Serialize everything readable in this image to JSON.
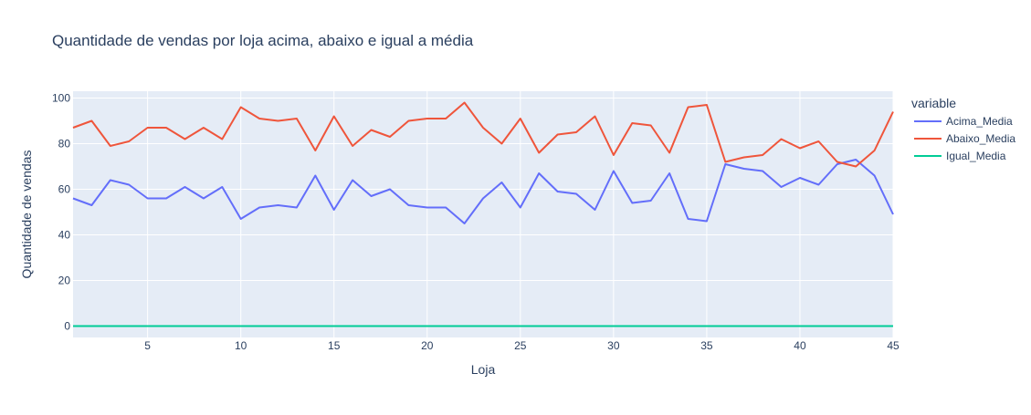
{
  "chart_data": {
    "type": "line",
    "title": "Quantidade de vendas por loja acima, abaixo e igual a média",
    "xlabel": "Loja",
    "ylabel": "Quantidade de vendas",
    "xlim": [
      1,
      45
    ],
    "ylim": [
      -5,
      103
    ],
    "x_ticks": [
      5,
      10,
      15,
      20,
      25,
      30,
      35,
      40,
      45
    ],
    "y_ticks": [
      0,
      20,
      40,
      60,
      80,
      100
    ],
    "grid": true,
    "plot_bgcolor": "#E5ECF6",
    "legend": {
      "title": "variable",
      "position": "top-right"
    },
    "x": [
      1,
      2,
      3,
      4,
      5,
      6,
      7,
      8,
      9,
      10,
      11,
      12,
      13,
      14,
      15,
      16,
      17,
      18,
      19,
      20,
      21,
      22,
      23,
      24,
      25,
      26,
      27,
      28,
      29,
      30,
      31,
      32,
      33,
      34,
      35,
      36,
      37,
      38,
      39,
      40,
      41,
      42,
      43,
      44,
      45
    ],
    "series": [
      {
        "name": "Acima_Media",
        "color": "#636EFA",
        "values": [
          56,
          53,
          64,
          62,
          56,
          56,
          61,
          56,
          61,
          47,
          52,
          53,
          52,
          66,
          51,
          64,
          57,
          60,
          53,
          52,
          52,
          45,
          56,
          63,
          52,
          67,
          59,
          58,
          51,
          68,
          54,
          55,
          67,
          47,
          46,
          71,
          69,
          68,
          61,
          65,
          62,
          71,
          73,
          66,
          49
        ]
      },
      {
        "name": "Abaixo_Media",
        "color": "#EF553B",
        "values": [
          87,
          90,
          79,
          81,
          87,
          87,
          82,
          87,
          82,
          96,
          91,
          90,
          91,
          77,
          92,
          79,
          86,
          83,
          90,
          91,
          91,
          98,
          87,
          80,
          91,
          76,
          84,
          85,
          92,
          75,
          89,
          88,
          76,
          96,
          97,
          72,
          74,
          75,
          82,
          78,
          81,
          72,
          70,
          77,
          94
        ]
      },
      {
        "name": "Igual_Media",
        "color": "#00CC96",
        "values": [
          0,
          0,
          0,
          0,
          0,
          0,
          0,
          0,
          0,
          0,
          0,
          0,
          0,
          0,
          0,
          0,
          0,
          0,
          0,
          0,
          0,
          0,
          0,
          0,
          0,
          0,
          0,
          0,
          0,
          0,
          0,
          0,
          0,
          0,
          0,
          0,
          0,
          0,
          0,
          0,
          0,
          0,
          0,
          0,
          0
        ]
      }
    ]
  }
}
